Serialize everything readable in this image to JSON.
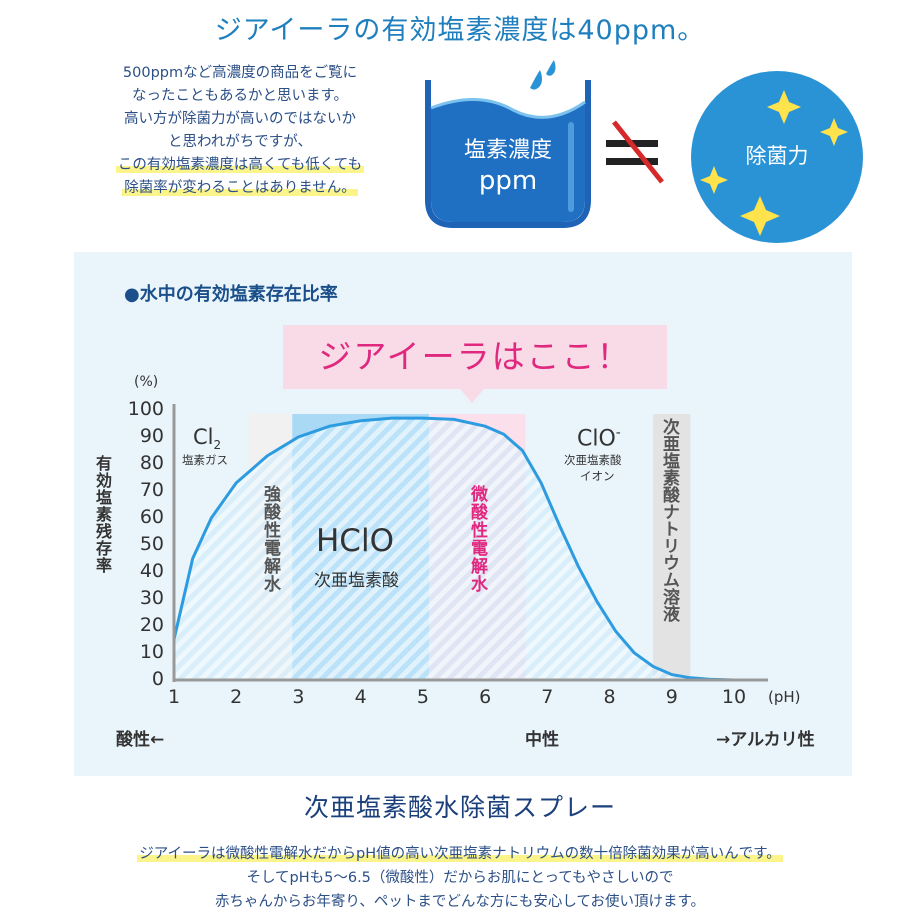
{
  "header": {
    "title": "ジアイーラの有効塩素濃度は40ppm。"
  },
  "intro": {
    "lines": [
      "500ppmなど高濃度の商品をご覧に",
      "なったこともあるかと思います。",
      "高い方が除菌力が高いのではないか",
      "と思われがちですが、"
    ],
    "highlight_lines": [
      "この有効塩素濃度は高くても低くても",
      "除菌率が変わることはありません。"
    ]
  },
  "illustration": {
    "beaker_line1": "塩素濃度",
    "beaker_line2": "ppm",
    "not_equal": "≠",
    "circle_label": "除菌力"
  },
  "chart": {
    "heading": "●水中の有効塩素存在比率",
    "callout": "ジアイーラはここ！",
    "y_unit": "(%)",
    "y_label": "有効塩素残存率",
    "x_unit": "(pH)",
    "acid_label": "酸性←",
    "neutral_label": "中性",
    "alkali_label": "→アルカリ性",
    "regions": {
      "cl2": "Cl",
      "cl2_sub": "2",
      "cl2_name": "塩素ガス",
      "strong": "強酸性電解水",
      "hclo": "HClO",
      "hclo_name": "次亜塩素酸",
      "weak": "微酸性電解水",
      "clo": "ClO",
      "clo_sup": "-",
      "clo_name1": "次亜塩素酸",
      "clo_name2": "イオン",
      "naclo": "次亜塩素酸ナトリウム溶液"
    }
  },
  "chart_data": {
    "type": "area",
    "title": "●水中の有効塩素存在比率",
    "ylabel": "有効塩素残存率",
    "xlabel": "(pH)",
    "ylim": [
      0,
      100
    ],
    "xlim": [
      1,
      10
    ],
    "y_ticks": [
      0,
      10,
      20,
      30,
      40,
      50,
      60,
      70,
      80,
      90,
      100
    ],
    "x_ticks": [
      1,
      2,
      3,
      4,
      5,
      6,
      7,
      8,
      9,
      10
    ],
    "x": [
      1.0,
      1.3,
      1.6,
      2.0,
      2.5,
      3.0,
      3.5,
      4.0,
      4.5,
      5.0,
      5.5,
      6.0,
      6.3,
      6.6,
      6.9,
      7.2,
      7.5,
      7.8,
      8.1,
      8.4,
      8.7,
      9.0,
      9.3,
      9.6,
      10.0
    ],
    "y": [
      15,
      45,
      60,
      73,
      83,
      90,
      94,
      96,
      97,
      97,
      96.5,
      94,
      91,
      85,
      73,
      57,
      42,
      29,
      18,
      10,
      5,
      2,
      0.8,
      0.3,
      0
    ],
    "bands": [
      {
        "label": "強酸性電解水",
        "from": 2.2,
        "to": 2.9,
        "color": "#f1f1f1"
      },
      {
        "label": "HClO",
        "from": 2.9,
        "to": 5.1,
        "color": "#a9d9f5"
      },
      {
        "label": "微酸性電解水",
        "from": 5.1,
        "to": 6.65,
        "color": "#fbe0eb"
      },
      {
        "label": "次亜塩素酸ナトリウム溶液",
        "from": 8.7,
        "to": 9.3,
        "color": "#e3e3e3"
      }
    ],
    "curve_color": "#2d9be0"
  },
  "footer": {
    "title": "次亜塩素酸水除菌スプレー",
    "line1": "ジアイーラは微酸性電解水だからpH値の高い次亜塩素ナトリウムの数十倍除菌効果が高いんです。",
    "line2": "そしてpHも5～6.5（微酸性）だからお肌にとってもやさしいので",
    "line3": "赤ちゃんからお年寄り、ペットまでどんな方にも安心してお使い頂けます。"
  },
  "colors": {
    "title": "#1f7fbe",
    "navy": "#1a4f8a",
    "callout_pink": "#e0287f",
    "highlight": "#fbf48a",
    "circle": "#2a93d5"
  }
}
